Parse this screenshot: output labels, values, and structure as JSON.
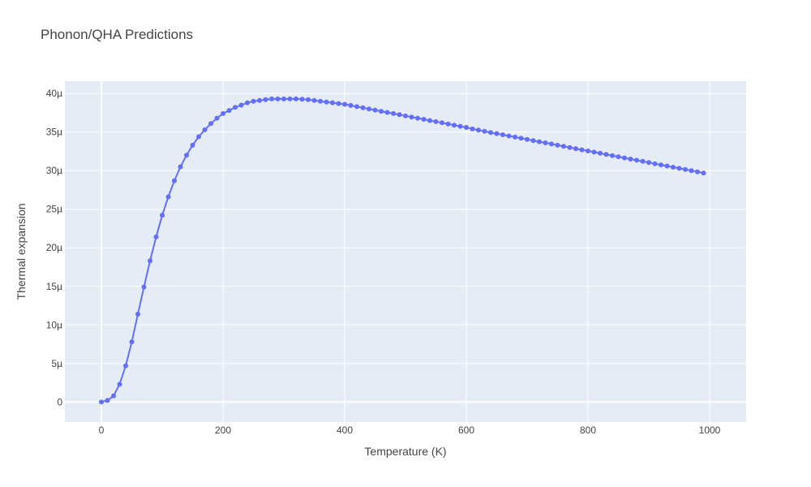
{
  "chart_data": {
    "type": "line",
    "title": "Phonon/QHA Predictions",
    "xlabel": "Temperature (K)",
    "ylabel": "Thermal expansion",
    "xlim": [
      -60,
      1060
    ],
    "ylim": [
      -2.6e-06,
      4.16e-05
    ],
    "x_ticks": [
      0,
      200,
      400,
      600,
      800,
      1000
    ],
    "x_tick_labels": [
      "0",
      "200",
      "400",
      "600",
      "800",
      "1000"
    ],
    "y_ticks": [
      0,
      5e-06,
      1e-05,
      1.5e-05,
      2e-05,
      2.5e-05,
      3e-05,
      3.5e-05,
      4e-05
    ],
    "y_tick_labels": [
      "0",
      "5µ",
      "10µ",
      "15µ",
      "20µ",
      "25µ",
      "30µ",
      "35µ",
      "40µ"
    ],
    "grid": true,
    "line_color": "#636efa",
    "series": [
      {
        "x": [
          0,
          10,
          20,
          30,
          40,
          50,
          60,
          70,
          80,
          90,
          100,
          110,
          120,
          130,
          140,
          150,
          160,
          170,
          180,
          190,
          200,
          210,
          220,
          230,
          240,
          250,
          260,
          270,
          280,
          290,
          300,
          310,
          320,
          330,
          340,
          350,
          360,
          370,
          380,
          390,
          400,
          410,
          420,
          430,
          440,
          450,
          460,
          470,
          480,
          490,
          500,
          510,
          520,
          530,
          540,
          550,
          560,
          570,
          580,
          590,
          600,
          610,
          620,
          630,
          640,
          650,
          660,
          670,
          680,
          690,
          700,
          710,
          720,
          730,
          740,
          750,
          760,
          770,
          780,
          790,
          800,
          810,
          820,
          830,
          840,
          850,
          860,
          870,
          880,
          890,
          900,
          910,
          920,
          930,
          940,
          950,
          960,
          970,
          980,
          990
        ],
        "y": [
          0,
          2e-07,
          8e-07,
          2.3e-06,
          4.7e-06,
          7.8e-06,
          1.14e-05,
          1.49e-05,
          1.83e-05,
          2.14e-05,
          2.42e-05,
          2.66e-05,
          2.87e-05,
          3.05e-05,
          3.2e-05,
          3.33e-05,
          3.44e-05,
          3.53e-05,
          3.61e-05,
          3.68e-05,
          3.74e-05,
          3.78e-05,
          3.82e-05,
          3.85e-05,
          3.88e-05,
          3.9e-05,
          3.91e-05,
          3.92e-05,
          3.93e-05,
          3.93e-05,
          3.93e-05,
          3.93e-05,
          3.93e-05,
          3.925e-05,
          3.92e-05,
          3.91e-05,
          3.9e-05,
          3.89e-05,
          3.88e-05,
          3.87e-05,
          3.86e-05,
          3.845e-05,
          3.83e-05,
          3.815e-05,
          3.8e-05,
          3.785e-05,
          3.77e-05,
          3.755e-05,
          3.74e-05,
          3.725e-05,
          3.71e-05,
          3.695e-05,
          3.68e-05,
          3.665e-05,
          3.65e-05,
          3.635e-05,
          3.62e-05,
          3.605e-05,
          3.59e-05,
          3.575e-05,
          3.56e-05,
          3.54e-05,
          3.525e-05,
          3.51e-05,
          3.495e-05,
          3.48e-05,
          3.465e-05,
          3.45e-05,
          3.435e-05,
          3.42e-05,
          3.405e-05,
          3.39e-05,
          3.375e-05,
          3.36e-05,
          3.345e-05,
          3.33e-05,
          3.315e-05,
          3.3e-05,
          3.285e-05,
          3.27e-05,
          3.255e-05,
          3.24e-05,
          3.225e-05,
          3.21e-05,
          3.195e-05,
          3.18e-05,
          3.165e-05,
          3.15e-05,
          3.135e-05,
          3.12e-05,
          3.105e-05,
          3.09e-05,
          3.075e-05,
          3.06e-05,
          3.045e-05,
          3.03e-05,
          3.015e-05,
          3e-05,
          2.985e-05,
          2.97e-05
        ]
      }
    ]
  }
}
